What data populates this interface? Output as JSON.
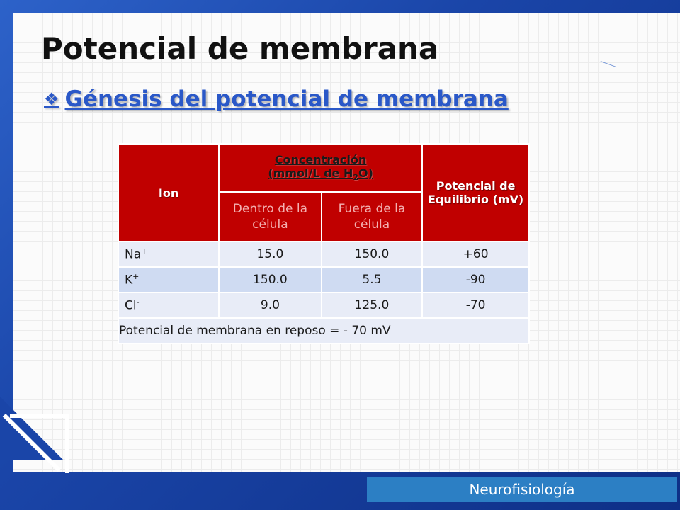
{
  "slide": {
    "title": "Potencial de membrana",
    "subtitle": "Génesis del potencial de membrana",
    "bullet_icon": "diamond-bullet-icon",
    "footer_badge": "Neurofisiología"
  },
  "table": {
    "headers": {
      "ion": "Ion",
      "concentration_line1": "Concentración",
      "concentration_line2_pre": "(mmol/L de H",
      "concentration_line2_sub": "2",
      "concentration_line2_post": "O)",
      "inside": "Dentro de la célula",
      "outside": "Fuera de la célula",
      "potential": "Potencial de Equilibrio (mV)"
    },
    "rows": [
      {
        "ion": "Na",
        "charge": "+",
        "inside": "15.0",
        "outside": "150.0",
        "potential": "+60"
      },
      {
        "ion": "K",
        "charge": "+",
        "inside": "150.0",
        "outside": "5.5",
        "potential": "-90"
      },
      {
        "ion": "Cl",
        "charge": "-",
        "inside": "9.0",
        "outside": "125.0",
        "potential": "-70"
      }
    ],
    "footer": "Potencial de membrana en reposo = - 70 mV"
  },
  "colors": {
    "header_red": "#c00000",
    "row_light": "#e8ecf7",
    "row_dark": "#cfdbf2",
    "accent_blue": "#2a58c8",
    "frame_blue": "#1a45a8"
  }
}
